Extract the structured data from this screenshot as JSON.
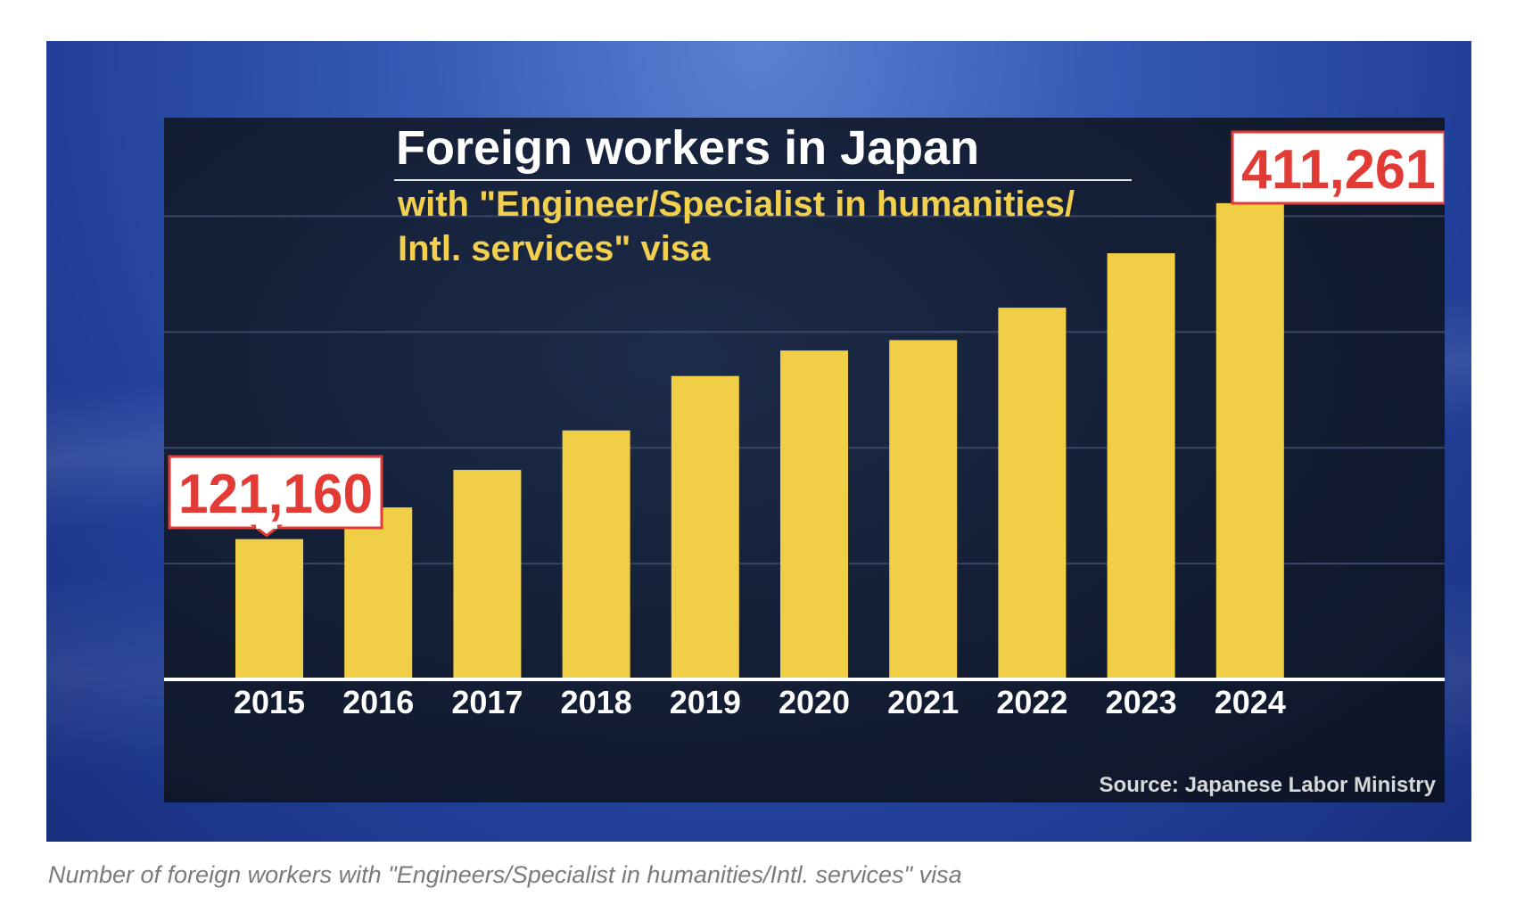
{
  "chart_data": {
    "type": "bar",
    "title": "Foreign workers in Japan",
    "subtitle_lines": [
      "with \"Engineer/Specialist in humanities/",
      "Intl. services\" visa"
    ],
    "categories": [
      "2015",
      "2016",
      "2017",
      "2018",
      "2019",
      "2020",
      "2021",
      "2022",
      "2023",
      "2024"
    ],
    "values": [
      121160,
      148500,
      180900,
      215000,
      262000,
      284000,
      293000,
      321000,
      368000,
      411261
    ],
    "callouts": [
      {
        "category": "2015",
        "label": "121,160"
      },
      {
        "category": "2024",
        "label": "411,261"
      }
    ],
    "source": "Source: Japanese Labor Ministry",
    "ylim": [
      0,
      405000
    ],
    "gridlines": [
      100000,
      200000,
      300000,
      400000
    ],
    "grid": true,
    "colors": {
      "bar": "#f0cf47",
      "callout_text": "#e23a35",
      "callout_border": "#e23a35",
      "subtitle": "#f2d04d",
      "title": "#ffffff"
    }
  },
  "caption": "Number of foreign workers with \"Engineers/Specialist in humanities/Intl. services\" visa"
}
